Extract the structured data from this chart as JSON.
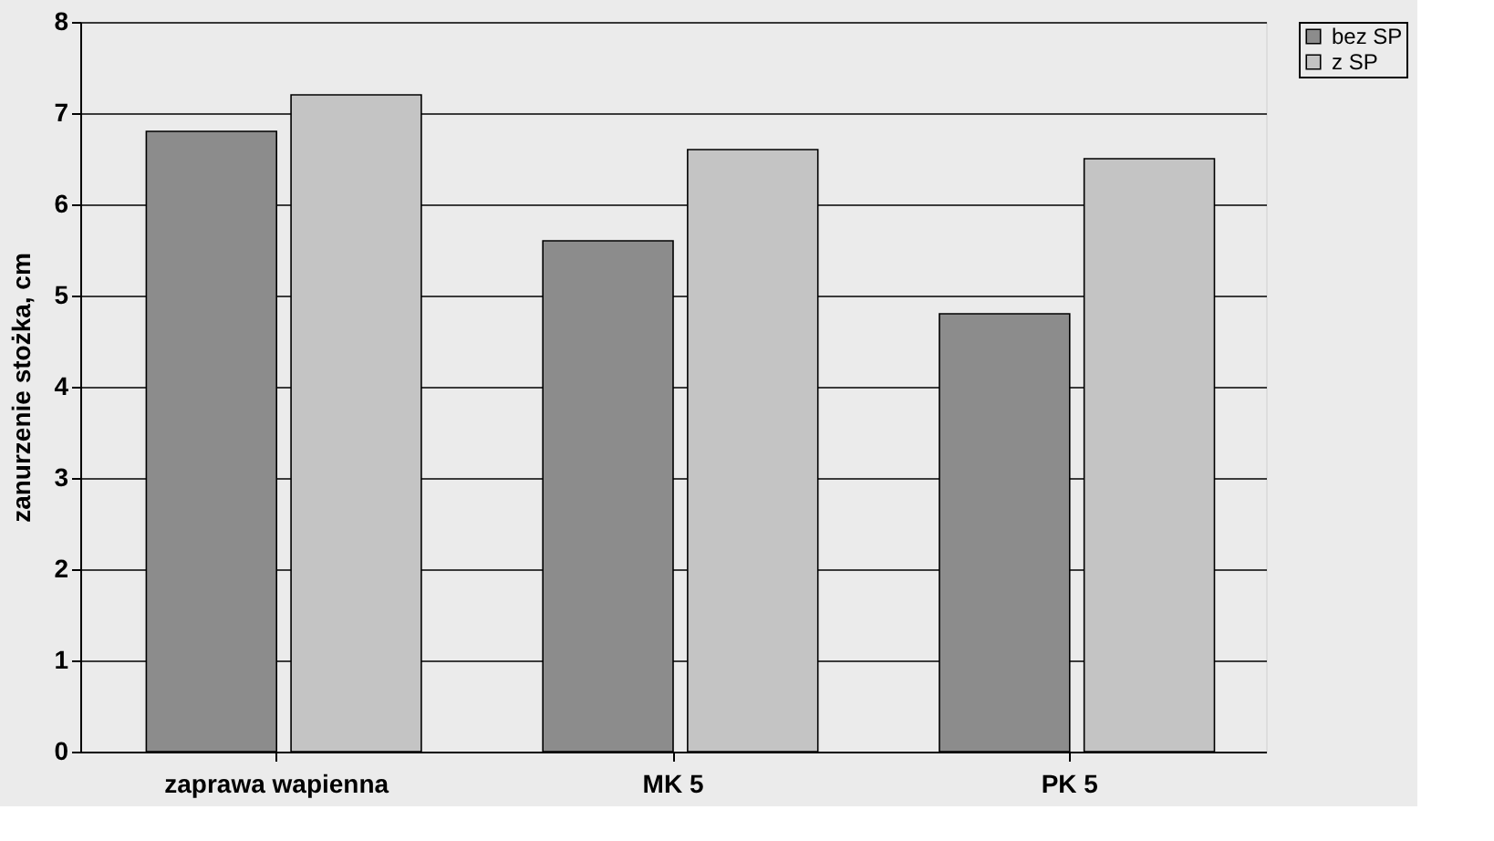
{
  "chart_data": {
    "type": "bar",
    "ylabel": "zanurzenie stożka, cm",
    "categories": [
      "zaprawa wapienna",
      "MK 5",
      "PK 5"
    ],
    "series": [
      {
        "name": "bez SP",
        "color": "#8c8c8c",
        "values": [
          6.8,
          5.6,
          4.8
        ]
      },
      {
        "name": "z SP",
        "color": "#c4c4c4",
        "values": [
          7.2,
          6.6,
          6.5
        ]
      }
    ],
    "ylim": [
      0,
      8
    ],
    "yticks": [
      0,
      1,
      2,
      3,
      4,
      5,
      6,
      7,
      8
    ],
    "grid": "y",
    "legend": "right"
  }
}
